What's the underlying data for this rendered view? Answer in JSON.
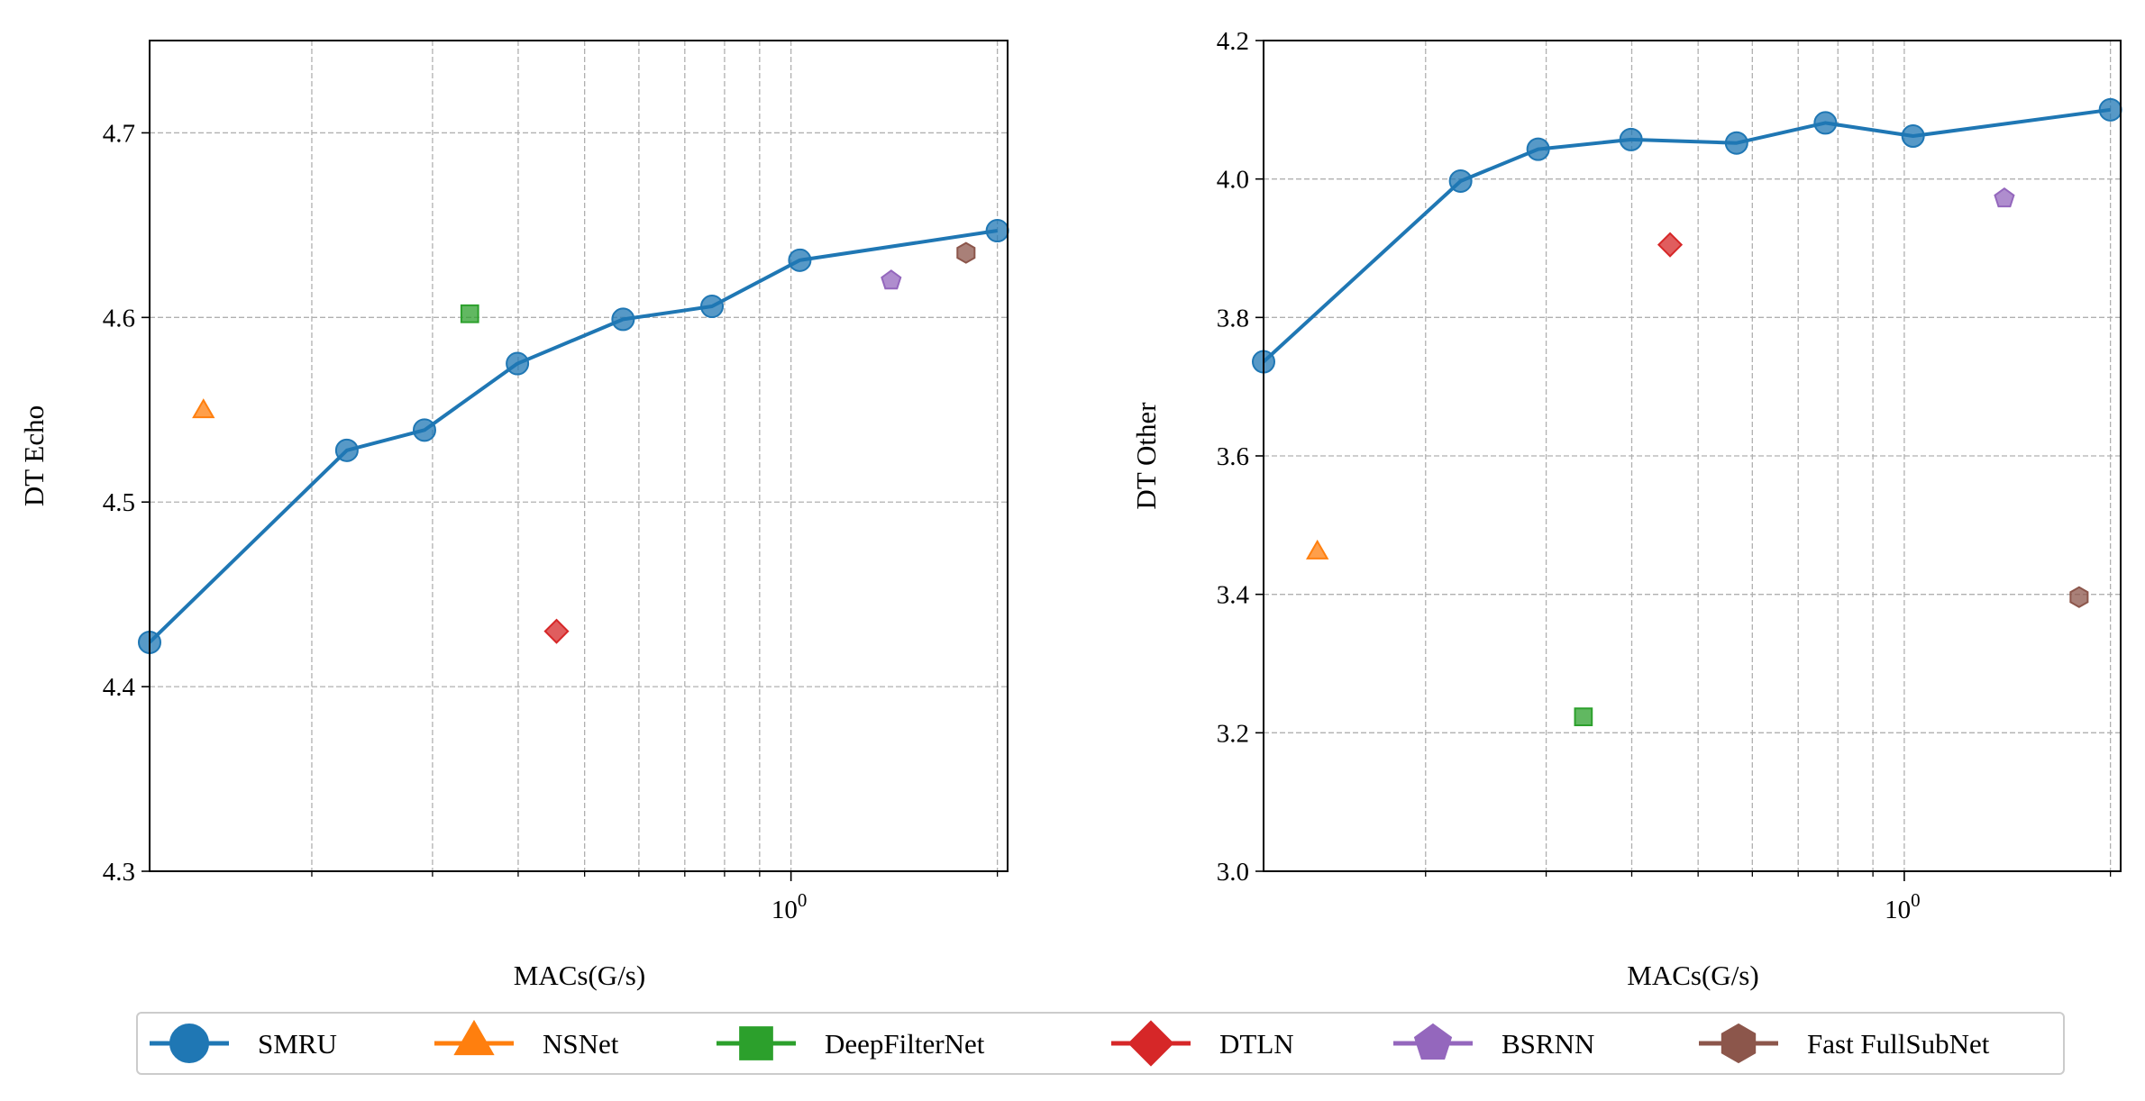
{
  "chart_data": [
    {
      "type": "line",
      "xlabel": "MACs(G/s)",
      "ylabel": "DT Echo",
      "xscale": "log",
      "xlim": [
        0.116,
        2.07
      ],
      "ylim": [
        4.3,
        4.75
      ],
      "yticks": [
        4.3,
        4.4,
        4.5,
        4.6,
        4.7
      ],
      "ytick_labels": [
        "4.3",
        "4.4",
        "4.5",
        "4.6",
        "4.7"
      ],
      "xtick_label_text": "10",
      "xtick_label_exp": "0",
      "grid": true,
      "series": [
        {
          "name": "SMRU",
          "marker": "circle",
          "line": true,
          "x": [
            0.116,
            0.225,
            0.292,
            0.399,
            0.569,
            0.767,
            1.03,
            2.0
          ],
          "y": [
            4.424,
            4.528,
            4.539,
            4.575,
            4.599,
            4.606,
            4.631,
            4.647
          ]
        },
        {
          "name": "NSNet",
          "marker": "triangle",
          "x": [
            0.139
          ],
          "y": [
            4.549
          ]
        },
        {
          "name": "DeepFilterNet",
          "marker": "square",
          "x": [
            0.34
          ],
          "y": [
            4.602
          ]
        },
        {
          "name": "DTLN",
          "marker": "diamond",
          "x": [
            0.455
          ],
          "y": [
            4.43
          ]
        },
        {
          "name": "BSRNN",
          "marker": "pentagon",
          "x": [
            1.4
          ],
          "y": [
            4.62
          ]
        },
        {
          "name": "Fast FullSubNet",
          "marker": "hexagon",
          "x": [
            1.8
          ],
          "y": [
            4.635
          ]
        }
      ]
    },
    {
      "type": "line",
      "xlabel": "MACs(G/s)",
      "ylabel": "DT Other",
      "xscale": "log",
      "xlim": [
        0.116,
        2.07
      ],
      "ylim": [
        3.0,
        4.2
      ],
      "yticks": [
        3.0,
        3.2,
        3.4,
        3.6,
        3.8,
        4.0,
        4.2
      ],
      "ytick_labels": [
        "3.0",
        "3.2",
        "3.4",
        "3.6",
        "3.8",
        "4.0",
        "4.2"
      ],
      "xtick_label_text": "10",
      "xtick_label_exp": "0",
      "grid": true,
      "series": [
        {
          "name": "SMRU",
          "marker": "circle",
          "line": true,
          "x": [
            0.116,
            0.225,
            0.292,
            0.399,
            0.569,
            0.767,
            1.03,
            2.0
          ],
          "y": [
            3.736,
            3.997,
            4.043,
            4.057,
            4.052,
            4.081,
            4.062,
            4.1
          ]
        },
        {
          "name": "NSNet",
          "marker": "triangle",
          "x": [
            0.139
          ],
          "y": [
            3.46
          ]
        },
        {
          "name": "DeepFilterNet",
          "marker": "square",
          "x": [
            0.34
          ],
          "y": [
            3.223
          ]
        },
        {
          "name": "DTLN",
          "marker": "diamond",
          "x": [
            0.455
          ],
          "y": [
            3.905
          ]
        },
        {
          "name": "BSRNN",
          "marker": "pentagon",
          "x": [
            1.4
          ],
          "y": [
            3.972
          ]
        },
        {
          "name": "Fast FullSubNet",
          "marker": "hexagon",
          "x": [
            1.8
          ],
          "y": [
            3.396
          ]
        }
      ]
    }
  ],
  "legend": {
    "placement": "bottom-center",
    "items": [
      {
        "name": "SMRU",
        "marker": "circle",
        "color": "#1f77b4"
      },
      {
        "name": "NSNet",
        "marker": "triangle",
        "color": "#ff7f0e"
      },
      {
        "name": "DeepFilterNet",
        "marker": "square",
        "color": "#2ca02c"
      },
      {
        "name": "DTLN",
        "marker": "diamond",
        "color": "#d62728"
      },
      {
        "name": "BSRNN",
        "marker": "pentagon",
        "color": "#9467bd"
      },
      {
        "name": "Fast FullSubNet",
        "marker": "hexagon",
        "color": "#8c564b"
      }
    ]
  },
  "colors": {
    "SMRU": "#1f77b4",
    "NSNet": "#ff7f0e",
    "DeepFilterNet": "#2ca02c",
    "DTLN": "#d62728",
    "BSRNN": "#9467bd",
    "Fast FullSubNet": "#8c564b",
    "grid": "#b0b0b0"
  }
}
